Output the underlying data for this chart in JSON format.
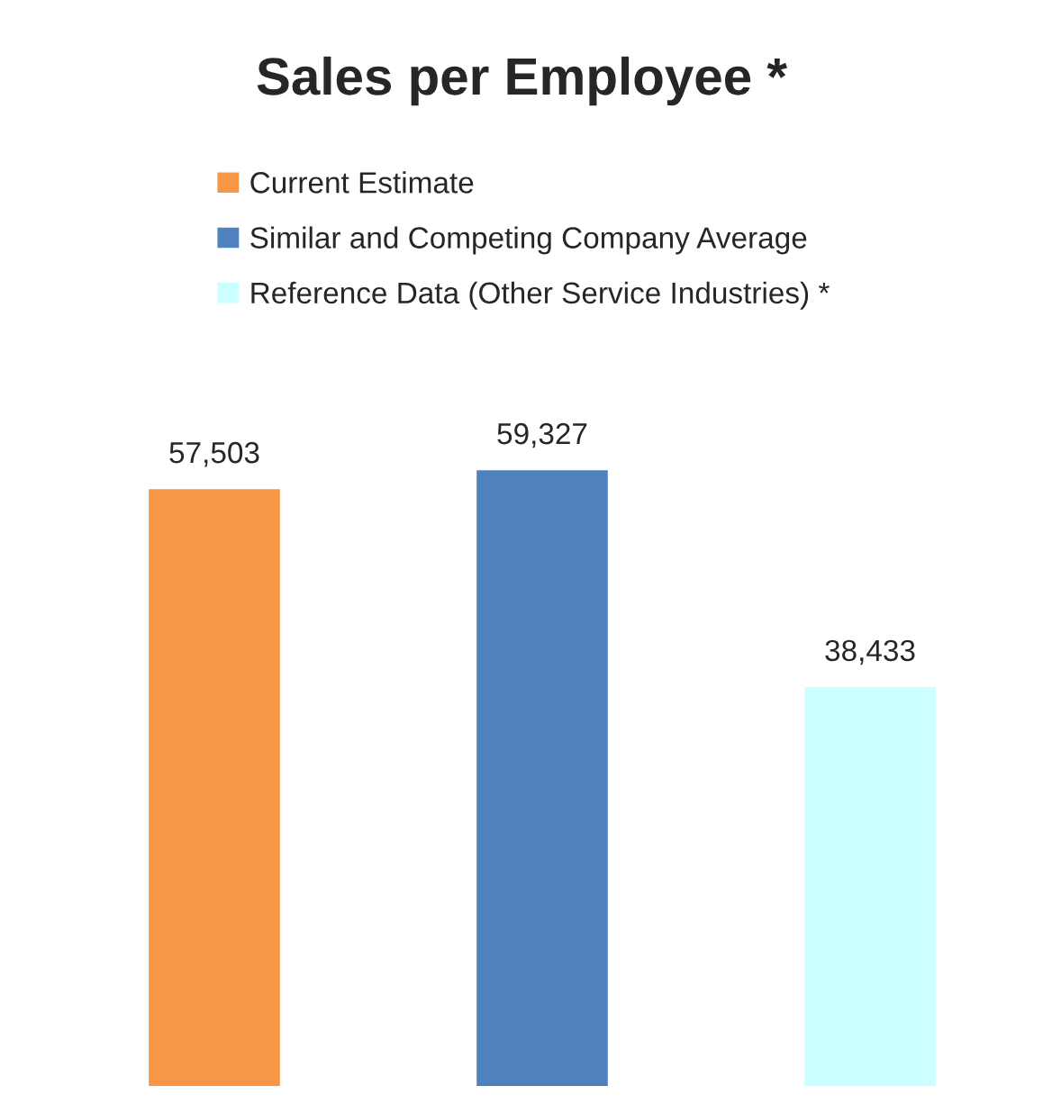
{
  "chart_data": {
    "type": "bar",
    "title": "Sales per Employee *",
    "categories": [
      null,
      null,
      null
    ],
    "stacked": true,
    "series": [
      {
        "name": "Current Estimate",
        "color": "#f79646",
        "values": [
          57503,
          null,
          null
        ],
        "value_labels": [
          "57,503",
          null,
          null
        ]
      },
      {
        "name": "Similar and Competing Company Average",
        "color": "#4f81bd",
        "values": [
          null,
          59327,
          null
        ],
        "value_labels": [
          null,
          "59,327",
          null
        ]
      },
      {
        "name": "Reference Data (Other Service Industries) *",
        "color": "#ccffff",
        "values": [
          null,
          null,
          38433
        ],
        "value_labels": [
          null,
          null,
          "38,433"
        ]
      }
    ],
    "legend": "top left"
  }
}
